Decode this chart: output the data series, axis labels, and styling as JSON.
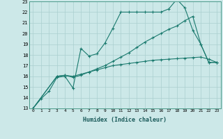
{
  "xlabel": "Humidex (Indice chaleur)",
  "background_color": "#cce8e8",
  "line_color": "#1a7a6e",
  "grid_color": "#aacfcf",
  "xlim": [
    -0.5,
    23.5
  ],
  "ylim": [
    13,
    23
  ],
  "xticks": [
    0,
    1,
    2,
    3,
    4,
    5,
    6,
    7,
    8,
    9,
    10,
    11,
    12,
    13,
    14,
    15,
    16,
    17,
    18,
    19,
    20,
    21,
    22,
    23
  ],
  "yticks": [
    13,
    14,
    15,
    16,
    17,
    18,
    19,
    20,
    21,
    22,
    23
  ],
  "series": [
    {
      "x": [
        0,
        1,
        2,
        3,
        4,
        5,
        6,
        7,
        8,
        9,
        10,
        11,
        12,
        13,
        14,
        15,
        16,
        17,
        18,
        19,
        20,
        21,
        22,
        23
      ],
      "y": [
        13,
        13.9,
        14.6,
        15.9,
        16.0,
        14.9,
        18.6,
        17.9,
        18.1,
        19.1,
        20.5,
        22.0,
        22.0,
        22.0,
        22.0,
        22.0,
        22.0,
        22.3,
        23.2,
        22.4,
        20.3,
        19.0,
        17.3,
        17.3
      ]
    },
    {
      "x": [
        0,
        3,
        4,
        5,
        6,
        7,
        8,
        9,
        10,
        11,
        12,
        13,
        14,
        15,
        16,
        17,
        18,
        19,
        20,
        21,
        22,
        23
      ],
      "y": [
        13,
        16.0,
        16.1,
        16.0,
        16.2,
        16.4,
        16.6,
        16.8,
        17.0,
        17.1,
        17.2,
        17.3,
        17.4,
        17.5,
        17.55,
        17.6,
        17.65,
        17.7,
        17.75,
        17.8,
        17.6,
        17.3
      ]
    },
    {
      "x": [
        0,
        3,
        4,
        5,
        6,
        7,
        8,
        9,
        10,
        11,
        12,
        13,
        14,
        15,
        16,
        17,
        18,
        19,
        20,
        21,
        22,
        23
      ],
      "y": [
        13,
        16.0,
        16.1,
        15.9,
        16.1,
        16.4,
        16.7,
        17.0,
        17.4,
        17.8,
        18.2,
        18.7,
        19.2,
        19.6,
        20.0,
        20.4,
        20.7,
        21.2,
        21.6,
        19.0,
        17.3,
        17.3
      ]
    }
  ]
}
